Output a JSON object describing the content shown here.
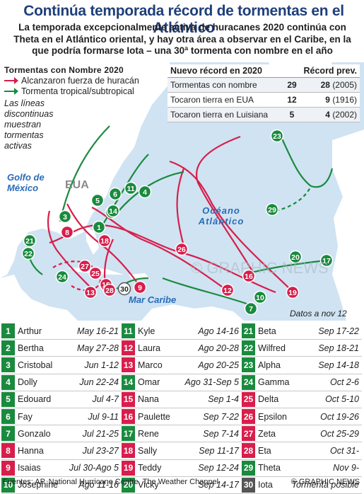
{
  "title": "Continúa temporada récord de tormentas en el Atlántico",
  "subtitle": "La temporada excepcionalmente activa de huracanes 2020 continúa con Theta en el Atlántico oriental, y hay otra área a observar en el Caribe, en la que podría formarse Iota – una 30ª tormenta con nombre en el año",
  "legend": {
    "heading": "Tormentas con Nombre 2020",
    "hurricane": "Alcanzaron fuerza de huracán",
    "tropical": "Tormenta tropical/subtropical",
    "dashed_note": "Las líneas discontinuas muestran tormentas activas",
    "hurricane_color": "#d81e4b",
    "tropical_color": "#1a8a3e"
  },
  "records": {
    "h1": "Nuevo récord en 2020",
    "h2": "Récord prev.",
    "rows": [
      {
        "label": "Tormentas con nombre",
        "value": "29",
        "prev_n": "28",
        "prev_y": "(2005)"
      },
      {
        "label": "Tocaron tierra en EUA",
        "value": "12",
        "prev_n": "9",
        "prev_y": "(1916)"
      },
      {
        "label": "Tocaron tierra en Luisiana",
        "value": "5",
        "prev_n": "4",
        "prev_y": "(2002)"
      }
    ]
  },
  "map_labels": {
    "gulf": "Golfo de México",
    "usa": "EUA",
    "ocean": "Océano Atlántico",
    "caribbean": "Mar Caribe",
    "watermark": "© GRAPHIC NEWS"
  },
  "data_note": "Datos a nov 12",
  "storms": [
    {
      "n": "1",
      "name": "Arthur",
      "date": "May 16-21",
      "type": "tropical"
    },
    {
      "n": "2",
      "name": "Bertha",
      "date": "May 27-28",
      "type": "tropical"
    },
    {
      "n": "3",
      "name": "Cristobal",
      "date": "Jun 1-12",
      "type": "tropical"
    },
    {
      "n": "4",
      "name": "Dolly",
      "date": "Jun 22-24",
      "type": "tropical"
    },
    {
      "n": "5",
      "name": "Edouard",
      "date": "Jul 4-7",
      "type": "tropical"
    },
    {
      "n": "6",
      "name": "Fay",
      "date": "Jul 9-11",
      "type": "tropical"
    },
    {
      "n": "7",
      "name": "Gonzalo",
      "date": "Jul 21-25",
      "type": "tropical"
    },
    {
      "n": "8",
      "name": "Hanna",
      "date": "Jul 23-27",
      "type": "hurricane"
    },
    {
      "n": "9",
      "name": "Isaias",
      "date": "Jul 30-Ago 5",
      "type": "hurricane"
    },
    {
      "n": "10",
      "name": "Josephine",
      "date": "Ago 11-16",
      "type": "tropical"
    },
    {
      "n": "11",
      "name": "Kyle",
      "date": "Ago 14-16",
      "type": "tropical"
    },
    {
      "n": "12",
      "name": "Laura",
      "date": "Ago 20-28",
      "type": "hurricane"
    },
    {
      "n": "13",
      "name": "Marco",
      "date": "Ago 20-25",
      "type": "hurricane"
    },
    {
      "n": "14",
      "name": "Omar",
      "date": "Ago 31-Sep 5",
      "type": "tropical"
    },
    {
      "n": "15",
      "name": "Nana",
      "date": "Sep 1-4",
      "type": "hurricane"
    },
    {
      "n": "16",
      "name": "Paulette",
      "date": "Sep 7-22",
      "type": "hurricane"
    },
    {
      "n": "17",
      "name": "Rene",
      "date": "Sep 7-14",
      "type": "tropical"
    },
    {
      "n": "18",
      "name": "Sally",
      "date": "Sep 11-17",
      "type": "hurricane"
    },
    {
      "n": "19",
      "name": "Teddy",
      "date": "Sep 12-24",
      "type": "hurricane"
    },
    {
      "n": "20",
      "name": "Vicky",
      "date": "Sep 14-17",
      "type": "tropical"
    },
    {
      "n": "21",
      "name": "Beta",
      "date": "Sep 17-22",
      "type": "tropical"
    },
    {
      "n": "22",
      "name": "Wilfred",
      "date": "Sep 18-21",
      "type": "tropical"
    },
    {
      "n": "23",
      "name": "Alpha",
      "date": "Sep 14-18",
      "type": "tropical"
    },
    {
      "n": "24",
      "name": "Gamma",
      "date": "Oct 2-6",
      "type": "tropical"
    },
    {
      "n": "25",
      "name": "Delta",
      "date": "Oct 5-10",
      "type": "hurricane"
    },
    {
      "n": "26",
      "name": "Epsilon",
      "date": "Oct 19-26",
      "type": "hurricane"
    },
    {
      "n": "27",
      "name": "Zeta",
      "date": "Oct 25-29",
      "type": "hurricane"
    },
    {
      "n": "28",
      "name": "Eta",
      "date": "Oct 31-",
      "type": "hurricane"
    },
    {
      "n": "29",
      "name": "Theta",
      "date": "Nov 9-",
      "type": "tropical"
    },
    {
      "n": "30",
      "name": "Iota",
      "date": "Tormenta posible",
      "type": "neutral"
    }
  ],
  "footer": {
    "sources": "Fuentes: AP, National Hurricane Centre, The Weather Channel",
    "copyright": "© GRAPHIC NEWS"
  }
}
